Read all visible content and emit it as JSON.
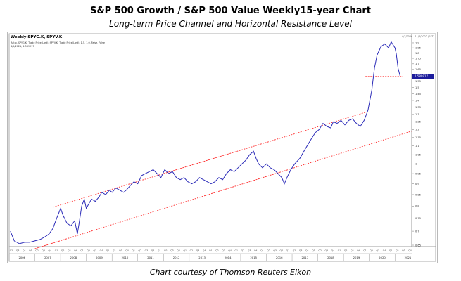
{
  "page": {
    "title": "S&P 500  Growth / S&P 500 Value Weekly15-year Chart",
    "subtitle": "Long-term Price Channel and Horizontal Resistance Level",
    "credit": "Chart courtesy of Thomson Reuters Eikon"
  },
  "chart_data": {
    "type": "line",
    "panel_title": "Weekly SPYG.K, SPYV.K",
    "legend_line1": "Ratio, SPYG.K, Trade Price(Last), SPYV.K, Trade Price(Last), 1.5, 1.0, False, False",
    "legend_line2": "4/2/2021, 1.589917",
    "date_range": "4/7/2006 - 11/4/2022 (EST)",
    "last_value_label": "1.589917",
    "y_scale": "log",
    "ylim": [
      0.65,
      1.95
    ],
    "xlim": [
      2006.0,
      2021.65
    ],
    "y_ticks": [
      0.65,
      0.7,
      0.75,
      0.8,
      0.85,
      0.9,
      0.95,
      1.0,
      1.05,
      1.1,
      1.15,
      1.2,
      1.25,
      1.3,
      1.35,
      1.4,
      1.45,
      1.5,
      1.55,
      1.6,
      1.65,
      1.7,
      1.75,
      1.8,
      1.85,
      1.9
    ],
    "y_tick_labels": [
      "0.65",
      "0.7",
      "0.75",
      "0.8",
      "0.85",
      "0.9",
      "0.95",
      "1",
      "1.05",
      "1.1",
      "1.15",
      "1.2",
      "1.25",
      "1.3",
      "1.35",
      "1.4",
      "1.45",
      "1.5",
      "1.55",
      "1.6",
      "1.65",
      "1.7",
      "1.75",
      "1.8",
      "1.85",
      "1.9"
    ],
    "years": [
      "2006",
      "2007",
      "2008",
      "2009",
      "2010",
      "2011",
      "2012",
      "2013",
      "2014",
      "2015",
      "2016",
      "2017",
      "2018",
      "2019",
      "2020",
      "2021"
    ],
    "quarter_labels": [
      "Q2",
      "Q3",
      "Q4",
      "Q1"
    ],
    "series": [
      {
        "color": "#2b2bb8",
        "x": [
          2006.05,
          2006.2,
          2006.4,
          2006.6,
          2006.8,
          2007.0,
          2007.2,
          2007.4,
          2007.55,
          2007.7,
          2007.85,
          2008.0,
          2008.1,
          2008.25,
          2008.4,
          2008.55,
          2008.65,
          2008.72,
          2008.82,
          2008.92,
          2009.0,
          2009.1,
          2009.2,
          2009.35,
          2009.5,
          2009.6,
          2009.75,
          2009.9,
          2010.0,
          2010.15,
          2010.3,
          2010.45,
          2010.55,
          2010.7,
          2010.85,
          2011.0,
          2011.15,
          2011.3,
          2011.45,
          2011.6,
          2011.75,
          2011.9,
          2012.05,
          2012.2,
          2012.35,
          2012.5,
          2012.65,
          2012.8,
          2012.95,
          2013.1,
          2013.25,
          2013.4,
          2013.55,
          2013.7,
          2013.85,
          2014.0,
          2014.15,
          2014.3,
          2014.45,
          2014.6,
          2014.75,
          2014.9,
          2015.05,
          2015.2,
          2015.35,
          2015.5,
          2015.6,
          2015.7,
          2015.85,
          2016.0,
          2016.15,
          2016.3,
          2016.45,
          2016.6,
          2016.7,
          2016.8,
          2016.95,
          2017.1,
          2017.3,
          2017.5,
          2017.7,
          2017.9,
          2018.05,
          2018.2,
          2018.35,
          2018.5,
          2018.6,
          2018.75,
          2018.9,
          2019.05,
          2019.2,
          2019.35,
          2019.5,
          2019.65,
          2019.8,
          2019.95,
          2020.1,
          2020.2,
          2020.3,
          2020.45,
          2020.6,
          2020.75,
          2020.85,
          2021.0,
          2021.05,
          2021.12,
          2021.2
        ],
        "values": [
          0.7,
          0.665,
          0.655,
          0.66,
          0.66,
          0.665,
          0.67,
          0.68,
          0.69,
          0.71,
          0.75,
          0.79,
          0.76,
          0.73,
          0.72,
          0.74,
          0.69,
          0.73,
          0.8,
          0.83,
          0.79,
          0.81,
          0.83,
          0.82,
          0.84,
          0.86,
          0.85,
          0.87,
          0.86,
          0.88,
          0.87,
          0.86,
          0.87,
          0.89,
          0.91,
          0.9,
          0.94,
          0.95,
          0.96,
          0.97,
          0.95,
          0.93,
          0.97,
          0.95,
          0.96,
          0.93,
          0.92,
          0.93,
          0.91,
          0.9,
          0.91,
          0.93,
          0.92,
          0.91,
          0.9,
          0.91,
          0.93,
          0.92,
          0.95,
          0.97,
          0.96,
          0.98,
          1.0,
          1.02,
          1.05,
          1.07,
          1.03,
          1.0,
          0.98,
          1.0,
          0.98,
          0.97,
          0.95,
          0.93,
          0.9,
          0.93,
          0.97,
          1.0,
          1.03,
          1.08,
          1.13,
          1.18,
          1.2,
          1.24,
          1.22,
          1.21,
          1.25,
          1.24,
          1.26,
          1.23,
          1.26,
          1.27,
          1.24,
          1.22,
          1.26,
          1.33,
          1.48,
          1.66,
          1.78,
          1.86,
          1.89,
          1.85,
          1.91,
          1.85,
          1.79,
          1.66,
          1.59
        ]
      }
    ],
    "annotations": [
      {
        "type": "trendline",
        "color": "#ff2a2a",
        "x": [
          2007.7,
          2019.95
        ],
        "y": [
          0.795,
          1.32
        ]
      },
      {
        "type": "trendline",
        "color": "#ff2a2a",
        "x": [
          2007.0,
          2021.65
        ],
        "y": [
          0.638,
          1.19
        ]
      },
      {
        "type": "horizontal",
        "color": "#ff2a2a",
        "x": [
          2019.85,
          2021.3
        ],
        "y": 1.59
      }
    ]
  }
}
